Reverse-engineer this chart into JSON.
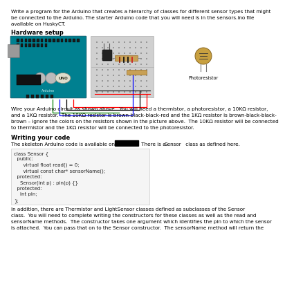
{
  "title_text": "Write a program for the Arduino that creates a hierarchy of classes for different sensor types that might\nbe connected to the Arduino. The starter Arduino code that you will need is in the sensors.ino file\navailable on HuskyCT.",
  "hardware_heading": "Hardware setup",
  "wire_text": "Wire your Arduino circuit as shown above.  You will need a thermistor, a photoresistor, a 10KΩ resistor,\nand a 1KΩ resistor.  The 10KΩ resistor is brown-black-black-red and the 1KΩ resistor is brown-black-black-\nbrown – ignore the colors on the resistors shown in the picture above.  The 10KΩ resistor will be connected\nto thermistor and the 1KΩ resistor will be connected to the photoresistor.",
  "writing_heading": "Writing your code",
  "code_lines": [
    "class Sensor {",
    "  public:",
    "      virtual float read() = 0;",
    "      virtual const char* sensorName();",
    "  protected:",
    "    Sensor(int p) : pin(p) {}",
    "  protected:",
    "    int pin;",
    "};"
  ],
  "bottom_text": "In addition, there are Thermistor and LightSensor classes defined as subclasses of the Sensor\nclass.  You will need to complete writing the constructors for these classes as well as the read and\nsensorName methods.  The constructor takes one argument which identifies the pin to which the sensor\nis attached.  You can pass that on to the Sensor constructor.  The sensorName method will return the",
  "photoresistor_label": "Photoresistor",
  "bg_color": "#ffffff",
  "text_color": "#000000",
  "body_fontsize": 5.2,
  "heading_fontsize": 6.0,
  "code_fontsize": 5.0,
  "arduino_color": "#008090",
  "breadboard_color": "#c8c8c8",
  "photo_color": "#c8a040"
}
